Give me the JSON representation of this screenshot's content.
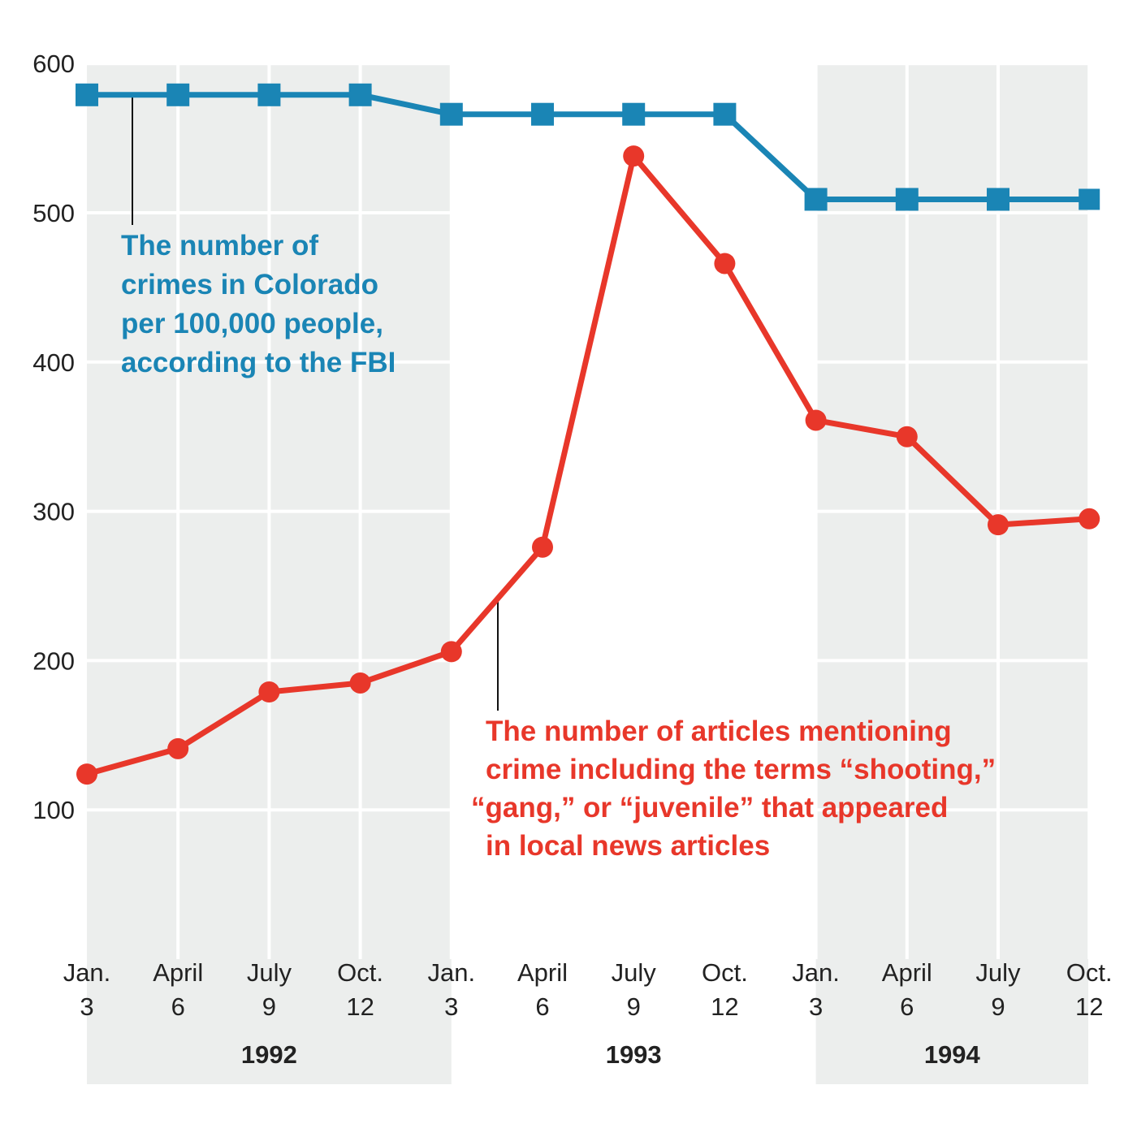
{
  "chart_data": {
    "type": "line",
    "xlabel": "",
    "ylabel": "",
    "ylim": [
      0,
      600
    ],
    "yticks": [
      "100",
      "200",
      "300",
      "400",
      "500",
      "600"
    ],
    "grid": true,
    "categories": [
      {
        "month": "Jan.",
        "day": "3"
      },
      {
        "month": "April",
        "day": "6"
      },
      {
        "month": "July",
        "day": "9"
      },
      {
        "month": "Oct.",
        "day": "12"
      },
      {
        "month": "Jan.",
        "day": "3"
      },
      {
        "month": "April",
        "day": "6"
      },
      {
        "month": "July",
        "day": "9"
      },
      {
        "month": "Oct.",
        "day": "12"
      },
      {
        "month": "Jan.",
        "day": "3"
      },
      {
        "month": "April",
        "day": "6"
      },
      {
        "month": "July",
        "day": "9"
      },
      {
        "month": "Oct.",
        "day": "12"
      }
    ],
    "years": [
      {
        "label": "1992",
        "shaded": true
      },
      {
        "label": "1993",
        "shaded": false
      },
      {
        "label": "1994",
        "shaded": true
      }
    ],
    "series": [
      {
        "color": "#1a85b5",
        "marker": "square",
        "values": [
          579,
          579,
          579,
          579,
          566,
          566,
          566,
          566,
          509,
          509,
          509,
          509
        ],
        "annotation": [
          "The number of",
          "crimes in Colorado",
          "per 100,000 people,",
          "according to the FBI"
        ]
      },
      {
        "color": "#e8372a",
        "marker": "circle",
        "values": [
          124,
          141,
          179,
          185,
          206,
          276,
          538,
          466,
          361,
          350,
          291,
          295
        ],
        "annotation": [
          "The number of articles mentioning",
          "crime including the terms “shooting,”",
          "“gang,” or “juvenile” that appeared",
          "in local news articles"
        ]
      }
    ]
  }
}
